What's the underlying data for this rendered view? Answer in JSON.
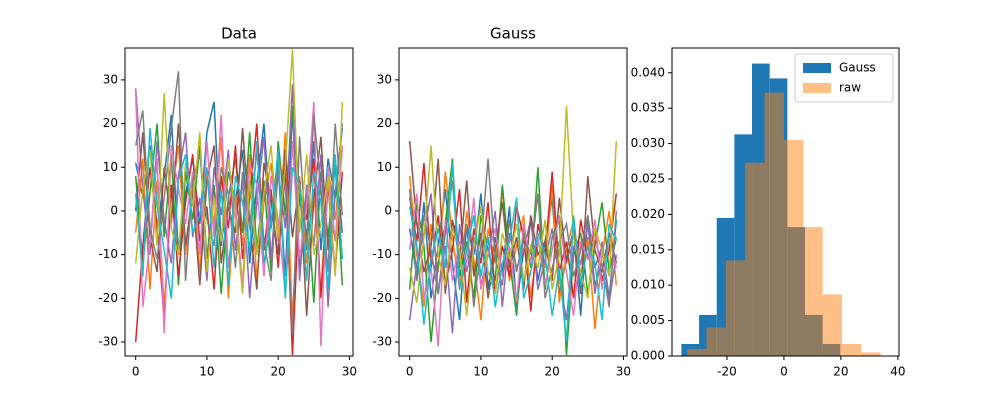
{
  "chart_data": [
    {
      "type": "line",
      "title": "Data",
      "x": [
        0,
        1,
        2,
        3,
        4,
        5,
        6,
        7,
        8,
        9,
        10,
        11,
        12,
        13,
        14,
        15,
        16,
        17,
        18,
        19,
        20,
        21,
        22,
        23,
        24,
        25,
        26,
        27,
        28,
        29
      ],
      "xlim": [
        -1.5,
        30.5
      ],
      "xticks": [
        0,
        10,
        20,
        30
      ],
      "ylim": [
        -33.2,
        37.3
      ],
      "yticks": [
        -30,
        -20,
        -10,
        0,
        10,
        20,
        30
      ],
      "grid": false,
      "series": [
        {
          "color": "#1f77b4",
          "values": [
            11,
            3,
            15,
            -5,
            8,
            22,
            -10,
            4,
            12,
            -3,
            18,
            25,
            -8,
            9,
            2,
            14,
            -12,
            6,
            20,
            -4,
            10,
            -15,
            23,
            5,
            -6,
            16,
            -9,
            12,
            3,
            19
          ]
        },
        {
          "color": "#ff7f0e",
          "values": [
            -5,
            12,
            -18,
            7,
            -22,
            3,
            15,
            -10,
            6,
            -14,
            9,
            -3,
            17,
            -20,
            4,
            -8,
            13,
            -16,
            2,
            11,
            -7,
            18,
            -25,
            8,
            -12,
            5,
            -19,
            10,
            -2,
            14
          ]
        },
        {
          "color": "#2ca02c",
          "values": [
            8,
            -12,
            4,
            20,
            -6,
            13,
            -17,
            9,
            -2,
            15,
            -11,
            6,
            -19,
            3,
            12,
            -5,
            18,
            -9,
            7,
            -14,
            16,
            -1,
            24,
            -13,
            5,
            -21,
            9,
            -6,
            11,
            -17
          ]
        },
        {
          "color": "#d62728",
          "values": [
            -30,
            -8,
            10,
            -3,
            -25,
            6,
            -15,
            2,
            13,
            -7,
            1,
            -18,
            8,
            -4,
            15,
            -11,
            3,
            20,
            -9,
            5,
            -13,
            10,
            -33,
            4,
            -2,
            12,
            -20,
            6,
            -14,
            9
          ]
        },
        {
          "color": "#9467bd",
          "values": [
            28,
            5,
            -10,
            16,
            -2,
            -12,
            8,
            18,
            -6,
            3,
            -16,
            10,
            -1,
            14,
            -9,
            7,
            -20,
            2,
            17,
            -11,
            9,
            -4,
            29,
            -16,
            6,
            -8,
            13,
            -22,
            4,
            20
          ]
        },
        {
          "color": "#8c564b",
          "values": [
            0,
            18,
            -6,
            -14,
            10,
            -3,
            20,
            -8,
            4,
            -17,
            7,
            15,
            -12,
            1,
            -5,
            19,
            -3,
            -18,
            11,
            2,
            -10,
            14,
            -6,
            7,
            -24,
            3,
            17,
            -9,
            12,
            -5
          ]
        },
        {
          "color": "#e377c2",
          "values": [
            27,
            -22,
            -7,
            12,
            -28,
            15,
            5,
            -3,
            9,
            -10,
            16,
            -6,
            22,
            -13,
            2,
            -17,
            11,
            6,
            -15,
            8,
            -2,
            -19,
            16,
            -11,
            1,
            25,
            -31,
            10,
            -7,
            15
          ]
        },
        {
          "color": "#7f7f7f",
          "values": [
            15,
            23,
            -4,
            -11,
            3,
            19,
            32,
            -16,
            7,
            13,
            -2,
            -8,
            10,
            4,
            -13,
            9,
            -4,
            14,
            -7,
            -16,
            12,
            6,
            -28,
            17,
            -9,
            22,
            5,
            -14,
            20,
            -1
          ]
        },
        {
          "color": "#bcbd22",
          "values": [
            -12,
            5,
            14,
            -8,
            27,
            -4,
            -10,
            11,
            1,
            18,
            -14,
            3,
            -7,
            12,
            -1,
            -19,
            7,
            -10,
            4,
            15,
            -6,
            10,
            37,
            -5,
            13,
            -10,
            -3,
            8,
            -15,
            25
          ]
        },
        {
          "color": "#17becf",
          "values": [
            4,
            -15,
            19,
            1,
            -9,
            -20,
            7,
            13,
            -5,
            -1,
            10,
            -13,
            5,
            -17,
            8,
            2,
            -9,
            16,
            -12,
            -3,
            14,
            -20,
            10,
            6,
            -16,
            9,
            2,
            -18,
            13,
            -11
          ]
        }
      ]
    },
    {
      "type": "line",
      "title": "Gauss",
      "x": [
        0,
        1,
        2,
        3,
        4,
        5,
        6,
        7,
        8,
        9,
        10,
        11,
        12,
        13,
        14,
        15,
        16,
        17,
        18,
        19,
        20,
        21,
        22,
        23,
        24,
        25,
        26,
        27,
        28,
        29
      ],
      "xlim": [
        -1.5,
        30.5
      ],
      "xticks": [
        0,
        10,
        20,
        30
      ],
      "ylim": [
        -33.2,
        37.3
      ],
      "yticks": [
        -30,
        -20,
        -10,
        0,
        10,
        20,
        30
      ],
      "grid": false,
      "series": [
        {
          "color": "#1f77b4",
          "values": [
            -4,
            -15,
            2,
            -20,
            -8,
            5,
            -12,
            -25,
            -3,
            -10,
            4,
            -18,
            -6,
            -14,
            1,
            -22,
            -9,
            -2,
            -16,
            -7,
            3,
            -19,
            -11,
            -5,
            -24,
            -1,
            -13,
            -8,
            -20,
            -2
          ]
        },
        {
          "color": "#ff7f0e",
          "values": [
            8,
            -10,
            -22,
            -3,
            -14,
            9,
            -6,
            -18,
            0,
            -11,
            -25,
            -4,
            -12,
            5,
            -16,
            -8,
            -1,
            -20,
            -7,
            -13,
            6,
            -21,
            -9,
            -2,
            -15,
            -6,
            -27,
            -10,
            0,
            -17
          ]
        },
        {
          "color": "#2ca02c",
          "values": [
            -18,
            2,
            -8,
            -30,
            -12,
            -3,
            12,
            -15,
            -7,
            -20,
            -1,
            -9,
            -16,
            6,
            -11,
            -24,
            -4,
            -13,
            10,
            -18,
            -6,
            -2,
            -33,
            -10,
            -5,
            -19,
            -8,
            2,
            -14,
            -6
          ]
        },
        {
          "color": "#d62728",
          "values": [
            3,
            -7,
            11,
            -13,
            -1,
            -17,
            -9,
            5,
            -21,
            -4,
            -12,
            2,
            -19,
            -8,
            -15,
            1,
            -6,
            -23,
            -3,
            -10,
            9,
            -14,
            -7,
            -20,
            -2,
            -11,
            -4,
            -16,
            -9,
            4
          ]
        },
        {
          "color": "#9467bd",
          "values": [
            -25,
            -12,
            -5,
            4,
            -19,
            -8,
            -28,
            -3,
            -14,
            -6,
            -17,
            -10,
            0,
            -22,
            -5,
            -13,
            -9,
            -2,
            -18,
            -11,
            -4,
            -15,
            -25,
            -8,
            -12,
            -3,
            -19,
            -7,
            -21,
            -10
          ]
        },
        {
          "color": "#8c564b",
          "values": [
            16,
            -3,
            -14,
            -8,
            12,
            -19,
            -2,
            -11,
            7,
            -15,
            -5,
            -20,
            -9,
            2,
            -13,
            -6,
            -18,
            -1,
            -10,
            -7,
            -16,
            3,
            -12,
            -4,
            -19,
            8,
            -9,
            -14,
            -5,
            -12
          ]
        },
        {
          "color": "#e377c2",
          "values": [
            -9,
            4,
            -20,
            -13,
            -31,
            -2,
            -16,
            -7,
            -12,
            3,
            -18,
            -10,
            -4,
            -15,
            -8,
            -21,
            -3,
            -12,
            -6,
            -17,
            -9,
            -1,
            -14,
            -24,
            -7,
            -11,
            -2,
            -18,
            -6,
            -13
          ]
        },
        {
          "color": "#7f7f7f",
          "values": [
            5,
            -16,
            -1,
            -9,
            -19,
            -5,
            7,
            -13,
            -3,
            -22,
            -8,
            12,
            -11,
            -17,
            -2,
            -14,
            -6,
            -10,
            4,
            -20,
            -13,
            -7,
            -3,
            -15,
            -9,
            -1,
            -17,
            -12,
            -22,
            0
          ]
        },
        {
          "color": "#bcbd22",
          "values": [
            -13,
            -21,
            -6,
            15,
            -10,
            -17,
            -4,
            -9,
            -24,
            -8,
            1,
            -14,
            -19,
            -5,
            -11,
            -3,
            -16,
            -8,
            -13,
            -2,
            -18,
            -10,
            24,
            -6,
            -14,
            -20,
            -4,
            -9,
            -15,
            16
          ]
        },
        {
          "color": "#17becf",
          "values": [
            1,
            -8,
            -26,
            -11,
            -4,
            -13,
            11,
            -18,
            -9,
            -1,
            -15,
            -6,
            -22,
            -12,
            -7,
            3,
            -20,
            -14,
            -5,
            -10,
            -24,
            -13,
            -30,
            -1,
            -17,
            -8,
            -12,
            -25,
            -3,
            -7
          ]
        }
      ]
    },
    {
      "type": "histogram",
      "xlim": [
        -39.3,
        40.4
      ],
      "xticks": [
        -20,
        0,
        20,
        40
      ],
      "ylim": [
        0,
        0.0435
      ],
      "yticks": [
        {
          "value": 0,
          "label": "0.000"
        },
        {
          "value": 0.005,
          "label": "0.005"
        },
        {
          "value": 0.01,
          "label": "0.010"
        },
        {
          "value": 0.015,
          "label": "0.015"
        },
        {
          "value": 0.02,
          "label": "0.020"
        },
        {
          "value": 0.025,
          "label": "0.025"
        },
        {
          "value": 0.03,
          "label": "0.030"
        },
        {
          "value": 0.035,
          "label": "0.035"
        },
        {
          "value": 0.04,
          "label": "0.040"
        }
      ],
      "grid": false,
      "legend": "upper right",
      "series": [
        {
          "name": "Gauss",
          "color": "#1f77b4",
          "alpha": 1,
          "bins": [
            -36,
            -29.8,
            -23.6,
            -17.4,
            -11.2,
            -5,
            1.2,
            7.4,
            13.6,
            19.8
          ],
          "values": [
            0.0017,
            0.0058,
            0.0195,
            0.0313,
            0.0413,
            0.0392,
            0.0182,
            0.0058,
            0.0017
          ]
        },
        {
          "name": "raw",
          "color": "#ff7f0e",
          "alpha": 0.5,
          "bins": [
            -34,
            -27.2,
            -20.4,
            -13.6,
            -6.8,
            0,
            6.8,
            13.6,
            20.4,
            27.2,
            34
          ],
          "values": [
            0.001,
            0.004,
            0.0135,
            0.0273,
            0.0372,
            0.0305,
            0.0182,
            0.0087,
            0.0017,
            0.0005
          ]
        }
      ]
    }
  ]
}
